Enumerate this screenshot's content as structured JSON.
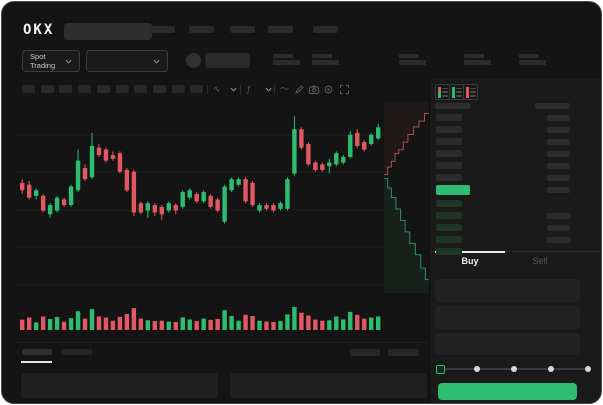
{
  "header": {
    "logo": "OKX",
    "search_placeholder": "",
    "nav_placeholder_count": 5
  },
  "trade_bar": {
    "market_selector_label": "Spot Trading",
    "stat_block_count": 5
  },
  "chart_toolbar": {
    "timeframe_placeholder_count": 10,
    "icons": [
      "wave-icon",
      "chevron-down-icon",
      "indicator-icon",
      "chevron-down-icon",
      "line-tool-icon",
      "pencil-icon",
      "camera-icon",
      "gear-icon",
      "expand-icon"
    ]
  },
  "orderbook": {
    "mode_icons": [
      "orderbook-combined-icon",
      "orderbook-bids-icon",
      "orderbook-asks-icon"
    ],
    "ask_row_count": 6,
    "amount_rows_right": 7,
    "bid_row_count": 5,
    "bid_amount_rows": [
      1,
      2,
      3
    ],
    "last_price_highlight_color": "#2ebd70"
  },
  "order_panel": {
    "tabs": {
      "buy": "Buy",
      "sell": "Sell"
    },
    "active_tab": "Buy",
    "field_count": 3,
    "slider_step_count": 5,
    "slider_active_step": 0,
    "submit_button_color": "#2ebd70"
  },
  "bottom_bar": {
    "tab_placeholder_count": 2,
    "right_placeholder_count": 2,
    "panel_count": 2
  },
  "colors": {
    "up": "#2ebd70",
    "down": "#e15862",
    "accent": "#2ebd70",
    "bid_bar": "#1e3527",
    "placeholder": "#2c2c2c",
    "depth_ask_line": "#a84f5e",
    "depth_bid_line": "#2e8f69"
  },
  "chart_data": {
    "type": "candlestick",
    "price_scale": {
      "min": 0,
      "max": 100
    },
    "grid_line_count": 5,
    "candle_format": [
      "open",
      "close",
      "high",
      "low"
    ],
    "candles": [
      [
        59,
        55,
        61,
        53
      ],
      [
        58,
        51,
        60,
        50
      ],
      [
        52,
        55,
        56,
        50
      ],
      [
        52,
        44,
        53,
        43
      ],
      [
        42,
        47,
        48,
        40
      ],
      [
        44,
        51,
        52,
        43
      ],
      [
        50,
        47,
        51,
        46
      ],
      [
        47,
        57,
        58,
        46
      ],
      [
        55,
        71,
        77,
        54
      ],
      [
        67,
        61,
        69,
        60
      ],
      [
        62,
        79,
        86,
        61
      ],
      [
        78,
        74,
        80,
        73
      ],
      [
        77,
        71,
        78,
        70
      ],
      [
        74,
        72,
        76,
        71
      ],
      [
        75,
        65,
        76,
        64
      ],
      [
        66,
        55,
        67,
        54
      ],
      [
        65,
        43,
        66,
        41
      ],
      [
        48,
        43,
        49,
        42
      ],
      [
        44,
        48,
        49,
        40
      ],
      [
        47,
        43,
        48,
        41
      ],
      [
        46,
        42,
        47,
        39
      ],
      [
        44,
        48,
        49,
        43
      ],
      [
        47,
        44,
        48,
        42
      ],
      [
        46,
        54,
        55,
        45
      ],
      [
        51,
        55,
        56,
        50
      ],
      [
        53,
        49,
        54,
        48
      ],
      [
        49,
        54,
        55,
        48
      ],
      [
        52,
        46,
        53,
        45
      ],
      [
        50,
        44,
        51,
        43
      ],
      [
        38,
        57,
        58,
        37
      ],
      [
        55,
        61,
        62,
        54
      ],
      [
        58,
        61,
        62,
        57
      ],
      [
        61,
        49,
        62,
        48
      ],
      [
        59,
        47,
        60,
        46
      ],
      [
        44,
        47,
        48,
        43
      ],
      [
        47,
        45,
        48,
        44
      ],
      [
        47,
        44,
        48,
        43
      ],
      [
        45,
        48,
        49,
        44
      ],
      [
        45,
        61,
        62,
        44
      ],
      [
        64,
        88,
        95,
        63
      ],
      [
        88,
        78,
        89,
        77
      ],
      [
        80,
        69,
        81,
        68
      ],
      [
        70,
        66,
        71,
        65
      ],
      [
        69,
        66,
        70,
        65
      ],
      [
        68,
        70,
        72,
        64
      ],
      [
        69,
        75,
        76,
        68
      ],
      [
        70,
        73,
        74,
        69
      ],
      [
        73,
        85,
        87,
        72
      ],
      [
        86,
        79,
        88,
        78
      ],
      [
        81,
        77,
        82,
        76
      ],
      [
        80,
        85,
        86,
        79
      ],
      [
        83,
        89,
        91,
        82
      ]
    ],
    "volume": [
      35,
      45,
      22,
      50,
      38,
      48,
      25,
      42,
      75,
      40,
      85,
      50,
      45,
      30,
      48,
      62,
      90,
      40,
      32,
      28,
      30,
      26,
      24,
      46,
      36,
      28,
      40,
      34,
      38,
      80,
      52,
      30,
      58,
      52,
      30,
      26,
      24,
      28,
      60,
      95,
      68,
      55,
      35,
      30,
      32,
      50,
      36,
      72,
      58,
      40,
      45,
      50
    ],
    "depth": {
      "asks": [
        [
          0,
          0.38
        ],
        [
          0.08,
          0.34
        ],
        [
          0.16,
          0.31
        ],
        [
          0.24,
          0.27
        ],
        [
          0.32,
          0.25
        ],
        [
          0.42,
          0.21
        ],
        [
          0.52,
          0.17
        ],
        [
          0.64,
          0.13
        ],
        [
          0.76,
          0.1
        ],
        [
          0.88,
          0.06
        ],
        [
          1,
          0.03
        ]
      ],
      "bids": [
        [
          0,
          0.4
        ],
        [
          0.08,
          0.45
        ],
        [
          0.16,
          0.5
        ],
        [
          0.26,
          0.56
        ],
        [
          0.36,
          0.62
        ],
        [
          0.46,
          0.68
        ],
        [
          0.56,
          0.74
        ],
        [
          0.68,
          0.8
        ],
        [
          0.8,
          0.87
        ],
        [
          0.9,
          0.93
        ],
        [
          1,
          0.97
        ]
      ]
    }
  }
}
